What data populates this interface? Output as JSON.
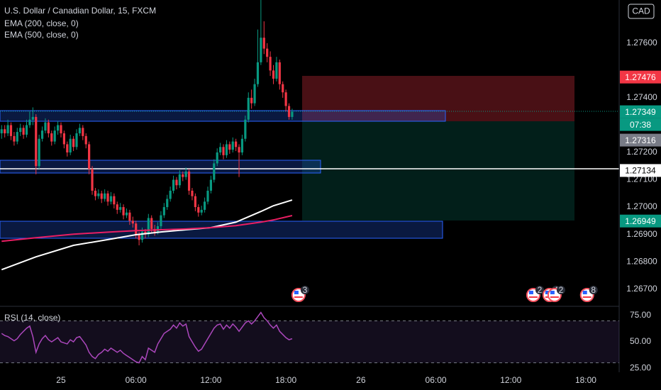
{
  "header": {
    "title": "U.S. Dollar / Canadian Dollar, 15, FXCM",
    "indicators": [
      "EMA (200, close, 0)",
      "EMA (500, close, 0)"
    ],
    "currency": "CAD"
  },
  "chart_data": [
    {
      "type": "candlestick",
      "x": [
        -4.75,
        -4.5,
        -4.25,
        -4,
        -3.75,
        -3.5,
        -3.25,
        -3,
        -2.75,
        -2.5,
        -2.25,
        -2,
        -1.75,
        -1.5,
        -1.25,
        -1,
        -0.75,
        -0.5,
        -0.25,
        0,
        0.25,
        0.5,
        0.75,
        1,
        1.25,
        1.5,
        1.75,
        2,
        2.25,
        2.5,
        2.75,
        3,
        3.25,
        3.5,
        3.75,
        4,
        4.25,
        4.5,
        4.75,
        5,
        5.25,
        5.5,
        5.75,
        6,
        6.25,
        6.5,
        6.75,
        7,
        7.25,
        7.5,
        7.75,
        8,
        8.25,
        8.5,
        8.75,
        9,
        9.25,
        9.5,
        9.75,
        10,
        10.25,
        10.5,
        10.75,
        11,
        11.25,
        11.5,
        11.75,
        12,
        12.25,
        12.5,
        12.75,
        13,
        13.25,
        13.5,
        13.75,
        14,
        14.25,
        14.5,
        14.75,
        15,
        15.25,
        15.5,
        15.75,
        16,
        16.25,
        16.5,
        16.75,
        17,
        17.25,
        17.5,
        17.75,
        18,
        18.25,
        18.5
      ],
      "ohlc": [
        [
          1.2727,
          1.273,
          1.2725,
          1.27285
        ],
        [
          1.27285,
          1.273,
          1.27255,
          1.2727
        ],
        [
          1.2727,
          1.2732,
          1.2726,
          1.273
        ],
        [
          1.273,
          1.2731,
          1.27245,
          1.2726
        ],
        [
          1.2726,
          1.27275,
          1.27225,
          1.2724
        ],
        [
          1.2724,
          1.2729,
          1.2723,
          1.27275
        ],
        [
          1.27275,
          1.27305,
          1.2726,
          1.2729
        ],
        [
          1.2729,
          1.273,
          1.2725,
          1.27265
        ],
        [
          1.27265,
          1.2732,
          1.27255,
          1.273
        ],
        [
          1.273,
          1.2735,
          1.2729,
          1.2732
        ],
        [
          1.2732,
          1.27365,
          1.273,
          1.2733
        ],
        [
          1.2733,
          1.2734,
          1.2712,
          1.2715
        ],
        [
          1.2715,
          1.27265,
          1.2714,
          1.2725
        ],
        [
          1.2725,
          1.27295,
          1.2724,
          1.2728
        ],
        [
          1.2728,
          1.27325,
          1.2727,
          1.2731
        ],
        [
          1.2731,
          1.2732,
          1.27255,
          1.2727
        ],
        [
          1.2727,
          1.2728,
          1.27225,
          1.2724
        ],
        [
          1.2724,
          1.27295,
          1.2723,
          1.2728
        ],
        [
          1.2728,
          1.27315,
          1.27265,
          1.273
        ],
        [
          1.273,
          1.2731,
          1.27255,
          1.2727
        ],
        [
          1.2727,
          1.2728,
          1.27215,
          1.2723
        ],
        [
          1.2723,
          1.2724,
          1.27185,
          1.272
        ],
        [
          1.272,
          1.27265,
          1.2719,
          1.2725
        ],
        [
          1.2725,
          1.2726,
          1.27205,
          1.2722
        ],
        [
          1.2722,
          1.27285,
          1.2721,
          1.2727
        ],
        [
          1.2727,
          1.27305,
          1.2726,
          1.2729
        ],
        [
          1.2729,
          1.273,
          1.27245,
          1.2726
        ],
        [
          1.2726,
          1.2727,
          1.27215,
          1.2723
        ],
        [
          1.2723,
          1.2724,
          1.2712,
          1.2714
        ],
        [
          1.2714,
          1.2715,
          1.27045,
          1.2706
        ],
        [
          1.2706,
          1.2707,
          1.27025,
          1.2704
        ],
        [
          1.2704,
          1.27065,
          1.2703,
          1.2705
        ],
        [
          1.2705,
          1.2706,
          1.27015,
          1.2703
        ],
        [
          1.2703,
          1.27065,
          1.2702,
          1.2705
        ],
        [
          1.2705,
          1.2706,
          1.27005,
          1.2702
        ],
        [
          1.2702,
          1.27055,
          1.2701,
          1.2704
        ],
        [
          1.2704,
          1.2705,
          1.26995,
          1.2701
        ],
        [
          1.2701,
          1.2702,
          1.26975,
          1.2699
        ],
        [
          1.2699,
          1.27015,
          1.2698,
          1.27
        ],
        [
          1.27,
          1.2701,
          1.26955,
          1.2697
        ],
        [
          1.2697,
          1.26995,
          1.2696,
          1.2698
        ],
        [
          1.2698,
          1.2699,
          1.26935,
          1.2695
        ],
        [
          1.2695,
          1.26965,
          1.26925,
          1.2694
        ],
        [
          1.2694,
          1.2695,
          1.26885,
          1.269
        ],
        [
          1.269,
          1.2691,
          1.2686,
          1.2688
        ],
        [
          1.2688,
          1.26925,
          1.2687,
          1.2691
        ],
        [
          1.2691,
          1.2692,
          1.26885,
          1.269
        ],
        [
          1.269,
          1.26975,
          1.2689,
          1.2696
        ],
        [
          1.2696,
          1.2697,
          1.26905,
          1.2692
        ],
        [
          1.2692,
          1.26935,
          1.26895,
          1.2691
        ],
        [
          1.2691,
          1.26945,
          1.269,
          1.2693
        ],
        [
          1.2693,
          1.26985,
          1.2692,
          1.2697
        ],
        [
          1.2697,
          1.27015,
          1.2696,
          1.27
        ],
        [
          1.27,
          1.27045,
          1.2699,
          1.2703
        ],
        [
          1.2703,
          1.27075,
          1.2702,
          1.2706
        ],
        [
          1.2706,
          1.27115,
          1.2705,
          1.271
        ],
        [
          1.271,
          1.2711,
          1.27065,
          1.2708
        ],
        [
          1.2708,
          1.27135,
          1.2707,
          1.2712
        ],
        [
          1.2712,
          1.2713,
          1.27095,
          1.2711
        ],
        [
          1.2711,
          1.27145,
          1.271,
          1.2713
        ],
        [
          1.2713,
          1.2714,
          1.27045,
          1.2706
        ],
        [
          1.2706,
          1.2707,
          1.27025,
          1.2704
        ],
        [
          1.2704,
          1.2705,
          1.26985,
          1.27
        ],
        [
          1.27,
          1.2701,
          1.26965,
          1.2698
        ],
        [
          1.2698,
          1.27005,
          1.2697,
          1.2699
        ],
        [
          1.2699,
          1.27035,
          1.2698,
          1.2702
        ],
        [
          1.2702,
          1.27075,
          1.2701,
          1.2706
        ],
        [
          1.2706,
          1.27115,
          1.2705,
          1.271
        ],
        [
          1.271,
          1.27175,
          1.2709,
          1.2716
        ],
        [
          1.2716,
          1.27215,
          1.2715,
          1.272
        ],
        [
          1.272,
          1.27235,
          1.2719,
          1.2722
        ],
        [
          1.2722,
          1.2723,
          1.27175,
          1.2719
        ],
        [
          1.2719,
          1.27245,
          1.2718,
          1.2723
        ],
        [
          1.2723,
          1.2724,
          1.27195,
          1.2721
        ],
        [
          1.2721,
          1.27255,
          1.272,
          1.2724
        ],
        [
          1.2724,
          1.2725,
          1.27205,
          1.2722
        ],
        [
          1.2722,
          1.2723,
          1.2711,
          1.272
        ],
        [
          1.272,
          1.27265,
          1.2719,
          1.2725
        ],
        [
          1.2725,
          1.27335,
          1.2724,
          1.2732
        ],
        [
          1.2732,
          1.2742,
          1.2731,
          1.274
        ],
        [
          1.274,
          1.2743,
          1.2736,
          1.2738
        ],
        [
          1.2738,
          1.2747,
          1.2737,
          1.2745
        ],
        [
          1.2745,
          1.2765,
          1.2744,
          1.2753
        ],
        [
          1.2753,
          1.2776,
          1.2752,
          1.2762
        ],
        [
          1.2762,
          1.2768,
          1.2756,
          1.2758
        ],
        [
          1.2758,
          1.276,
          1.2753,
          1.2755
        ],
        [
          1.2755,
          1.2757,
          1.2748,
          1.275
        ],
        [
          1.275,
          1.2752,
          1.2745,
          1.2747
        ],
        [
          1.2747,
          1.2755,
          1.2746,
          1.2753
        ],
        [
          1.2753,
          1.2754,
          1.2743,
          1.2745
        ],
        [
          1.2745,
          1.2746,
          1.274,
          1.2742
        ],
        [
          1.2742,
          1.2743,
          1.2735,
          1.2737
        ],
        [
          1.2737,
          1.2738,
          1.2732,
          1.2733
        ],
        [
          1.2733,
          1.2736,
          1.2732,
          1.27349
        ]
      ],
      "up_color": "#089981",
      "down_color": "#f23645",
      "series": [
        {
          "name": "EMA (200, close, 0)",
          "color": "#ffffff",
          "x": [
            -4.75,
            -2,
            1,
            4,
            6,
            8,
            10,
            12,
            14,
            16,
            17,
            18.5
          ],
          "values": [
            1.26771,
            1.26818,
            1.2686,
            1.26883,
            1.26899,
            1.26909,
            1.26917,
            1.26925,
            1.26945,
            1.26984,
            1.27005,
            1.27026
          ]
        },
        {
          "name": "EMA (500, close, 0)",
          "color": "#e91e63",
          "x": [
            -4.75,
            -2,
            1,
            4,
            6,
            8,
            10,
            12,
            14,
            16,
            17,
            18.5
          ],
          "values": [
            1.26875,
            1.26888,
            1.26901,
            1.26909,
            1.26914,
            1.26917,
            1.2692,
            1.26925,
            1.26932,
            1.26945,
            1.26953,
            1.26969
          ]
        }
      ],
      "xlim": [
        -4.88,
        44.67
      ],
      "ylim": [
        1.26642,
        1.27758
      ],
      "xticks": [
        {
          "value": 0,
          "label": "25"
        },
        {
          "value": 6,
          "label": "06:00"
        },
        {
          "value": 12,
          "label": "12:00"
        },
        {
          "value": 18,
          "label": "18:00"
        },
        {
          "value": 24,
          "label": "26"
        },
        {
          "value": 30,
          "label": "06:00"
        },
        {
          "value": 36,
          "label": "12:00"
        },
        {
          "value": 42,
          "label": "18:00"
        }
      ],
      "yticks": [
        {
          "value": 1.276,
          "label": "1.27600"
        },
        {
          "value": 1.274,
          "label": "1.27400"
        },
        {
          "value": 1.272,
          "label": "1.27200"
        },
        {
          "value": 1.271,
          "label": "1.27100"
        },
        {
          "value": 1.27,
          "label": "1.27000"
        },
        {
          "value": 1.269,
          "label": "1.26900"
        },
        {
          "value": 1.268,
          "label": "1.26800"
        },
        {
          "value": 1.267,
          "label": "1.26700"
        }
      ],
      "price_labels": [
        {
          "value": 1.27476,
          "label": "1.27476",
          "color": "#f23645"
        },
        {
          "value": 1.27349,
          "label": "1.27349",
          "color": "#089981",
          "countdown": "07:38"
        },
        {
          "value": 1.27316,
          "label": "1.27316",
          "color": "#787b86"
        },
        {
          "value": 1.27134,
          "label": "1.27134",
          "color": "#ffffff"
        },
        {
          "value": 1.26949,
          "label": "1.26949",
          "color": "#089981"
        }
      ],
      "events": [
        {
          "x": 19.01,
          "label": "3"
        },
        {
          "x": 37.8,
          "label": "2"
        },
        {
          "x": 39.1,
          "label": "4"
        },
        {
          "x": 39.5,
          "label": "2"
        },
        {
          "x": 42.1,
          "label": "8"
        }
      ]
    },
    {
      "type": "line",
      "title": "RSI (14, close)",
      "color": "#ab47bc",
      "x": [
        -4.75,
        -4.5,
        -4.25,
        -4,
        -3.75,
        -3.5,
        -3.25,
        -3,
        -2.75,
        -2.5,
        -2.25,
        -2,
        -1.75,
        -1.5,
        -1.25,
        -1,
        -0.75,
        -0.5,
        -0.25,
        0,
        0.25,
        0.5,
        0.75,
        1,
        1.25,
        1.5,
        1.75,
        2,
        2.25,
        2.5,
        2.75,
        3,
        3.25,
        3.5,
        3.75,
        4,
        4.25,
        4.5,
        4.75,
        5,
        5.25,
        5.5,
        5.75,
        6,
        6.25,
        6.5,
        6.75,
        7,
        7.25,
        7.5,
        7.75,
        8,
        8.25,
        8.5,
        8.75,
        9,
        9.25,
        9.5,
        9.75,
        10,
        10.25,
        10.5,
        10.75,
        11,
        11.25,
        11.5,
        11.75,
        12,
        12.25,
        12.5,
        12.75,
        13,
        13.25,
        13.5,
        13.75,
        14,
        14.25,
        14.5,
        14.75,
        15,
        15.25,
        15.5,
        15.75,
        16,
        16.25,
        16.5,
        16.75,
        17,
        17.25,
        17.5,
        17.75,
        18,
        18.25,
        18.5
      ],
      "values": [
        58,
        56,
        55,
        53,
        51,
        53,
        57,
        60,
        63,
        65,
        55,
        40,
        48,
        53,
        56,
        52,
        50,
        52,
        54,
        50,
        49,
        48,
        52,
        50,
        54,
        55,
        51,
        47,
        40,
        36,
        34,
        38,
        40,
        43,
        41,
        44,
        42,
        40,
        42,
        39,
        37,
        35,
        33,
        31,
        30,
        36,
        33,
        44,
        42,
        40,
        48,
        53,
        58,
        60,
        62,
        66,
        63,
        68,
        65,
        67,
        55,
        50,
        45,
        41,
        43,
        48,
        53,
        58,
        63,
        66,
        67,
        62,
        66,
        63,
        67,
        64,
        60,
        64,
        68,
        70,
        67,
        70,
        74,
        78,
        73,
        70,
        66,
        63,
        66,
        60,
        57,
        54,
        52,
        53
      ],
      "ylim": [
        21,
        81.8
      ],
      "band": [
        30,
        70
      ],
      "yticks": [
        {
          "value": 75,
          "label": "75.00"
        },
        {
          "value": 50,
          "label": "50.00"
        },
        {
          "value": 25,
          "label": "25.00"
        }
      ]
    }
  ]
}
